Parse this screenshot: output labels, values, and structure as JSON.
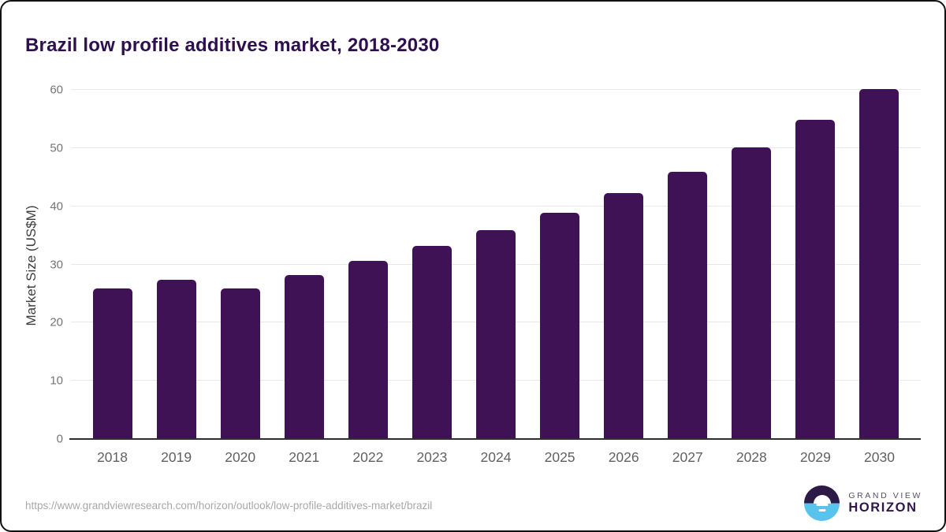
{
  "card": {
    "title": "Brazil low profile additives market, 2018-2030"
  },
  "chart_data": {
    "type": "bar",
    "title": "Brazil low profile additives market, 2018-2030",
    "categories": [
      "2018",
      "2019",
      "2020",
      "2021",
      "2022",
      "2023",
      "2024",
      "2025",
      "2026",
      "2027",
      "2028",
      "2029",
      "2030"
    ],
    "values": [
      25.9,
      27.3,
      25.9,
      28.2,
      30.6,
      33.2,
      35.9,
      38.9,
      42.3,
      45.9,
      50.1,
      54.8,
      60.2
    ],
    "xlabel": "",
    "ylabel": "Market Size (US$M)",
    "ylim": [
      0,
      60
    ],
    "yticks": [
      0,
      10,
      20,
      30,
      40,
      50,
      60
    ],
    "grid": true,
    "legend": false,
    "bar_color": "#3f1155"
  },
  "footer": {
    "source_url": "https://www.grandviewresearch.com/horizon/outlook/low-profile-additives-market/brazil",
    "logo": {
      "line1": "GRAND VIEW",
      "line2": "HORIZON"
    }
  },
  "colors": {
    "bar": "#3f1155",
    "title_text": "#2e0f4f",
    "gridline": "#e8e8e8",
    "axis_line": "#2e2e2e",
    "tick_text": "#757575",
    "xlabel_text": "#616161",
    "url_text": "#a8a8a8",
    "logo_purple": "#2e1a47",
    "logo_blue": "#58c4ee"
  }
}
